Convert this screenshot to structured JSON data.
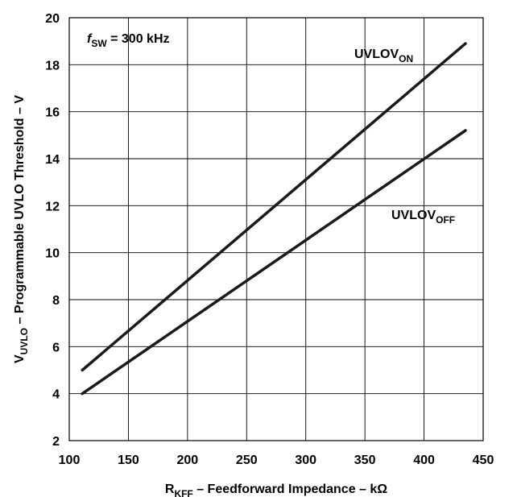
{
  "chart_data": {
    "type": "line",
    "xlabel": {
      "main": "R",
      "sub": "KFF",
      "rest": " – Feedforward Impedance – kΩ"
    },
    "ylabel": {
      "main": "V",
      "sub": "UVLO",
      "rest": " – Programmable UVLO Threshold – V"
    },
    "xlim": [
      100,
      450
    ],
    "ylim": [
      2,
      20
    ],
    "x_ticks": [
      "100",
      "150",
      "200",
      "250",
      "300",
      "350",
      "400",
      "450"
    ],
    "y_ticks": [
      "2",
      "4",
      "6",
      "8",
      "10",
      "12",
      "14",
      "16",
      "18",
      "20"
    ],
    "grid": true,
    "annotation": {
      "italic": "f",
      "sub": "SW",
      "rest": " = 300 kHz"
    },
    "series": [
      {
        "name": "UVLOVON",
        "label_main": "UVLOV",
        "label_sub": "ON",
        "x": [
          111,
          435
        ],
        "y": [
          5.0,
          18.9
        ]
      },
      {
        "name": "UVLOVOFF",
        "label_main": "UVLOV",
        "label_sub": "OFF",
        "x": [
          111,
          435
        ],
        "y": [
          4.0,
          15.2
        ]
      }
    ],
    "line_color": "#1a1a1a"
  }
}
